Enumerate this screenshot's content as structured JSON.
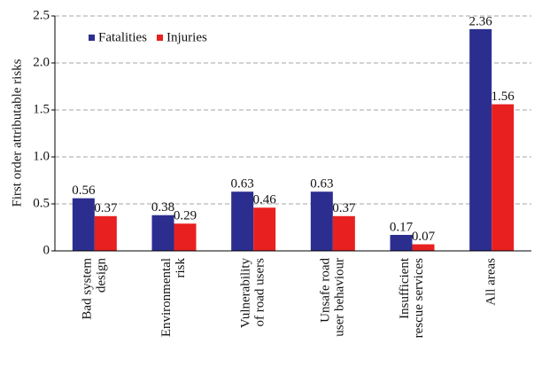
{
  "chart_data": {
    "type": "bar",
    "ylabel": "First order attributable risks",
    "categories": [
      [
        "Bad system",
        "design"
      ],
      [
        "Environmental",
        "risk"
      ],
      [
        "Vulnerability",
        "of road users"
      ],
      [
        "Unsafe road",
        "user behaviour"
      ],
      [
        "Insufficient",
        "rescue services"
      ],
      [
        "All areas"
      ]
    ],
    "series": [
      {
        "name": "Fatalities",
        "color": "#2b2e8f",
        "values": [
          0.56,
          0.38,
          0.63,
          0.63,
          0.17,
          2.36
        ]
      },
      {
        "name": "Injuries",
        "color": "#e8201f",
        "values": [
          0.37,
          0.29,
          0.46,
          0.37,
          0.07,
          1.56
        ]
      }
    ],
    "ylim": [
      0,
      2.5
    ],
    "yticks": [
      0,
      0.5,
      {
        "value": 1,
        "label": "1.0"
      },
      1.5,
      {
        "value": 2,
        "label": "2.0"
      },
      2.5
    ],
    "grid": true,
    "legend": "upper left"
  }
}
